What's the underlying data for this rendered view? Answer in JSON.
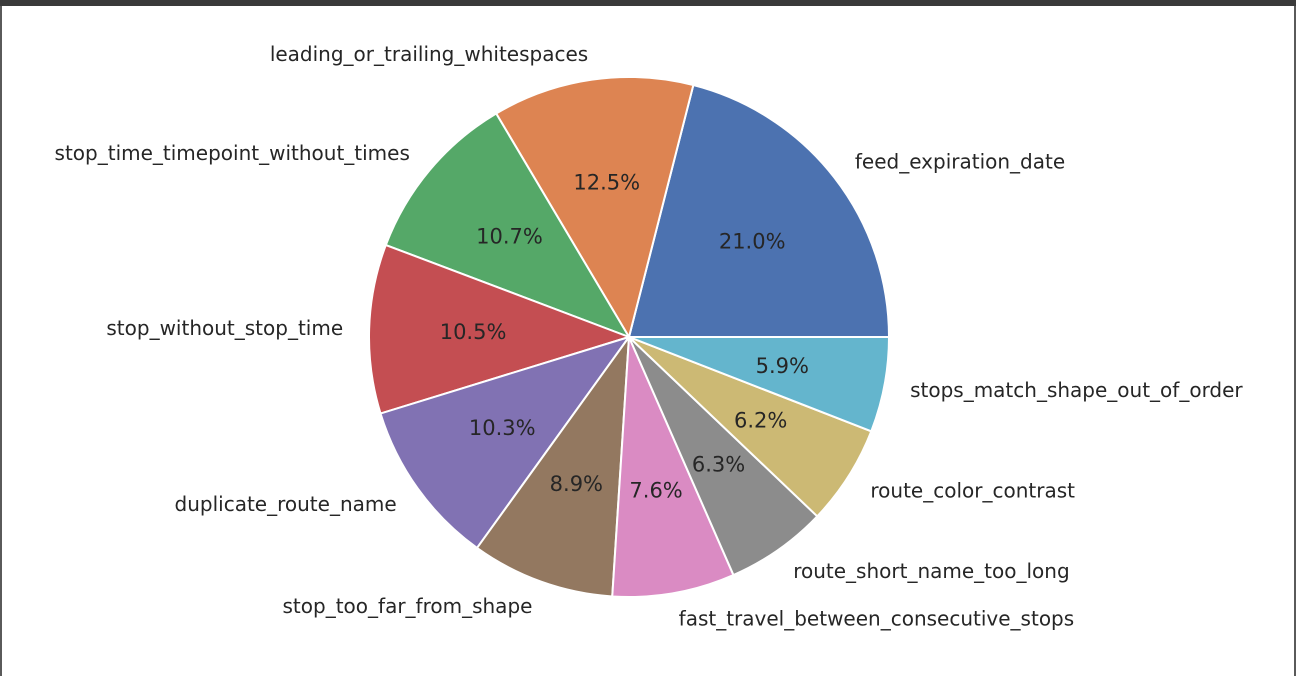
{
  "chart_data": {
    "type": "pie",
    "title": "",
    "start_angle_deg": 0,
    "direction": "counterclockwise",
    "slices": [
      {
        "label": "feed_expiration_date",
        "value": 21.0,
        "pct_text": "21.0%",
        "color": "#4c72b0"
      },
      {
        "label": "leading_or_trailing_whitespaces",
        "value": 12.5,
        "pct_text": "12.5%",
        "color": "#dd8452"
      },
      {
        "label": "stop_time_timepoint_without_times",
        "value": 10.7,
        "pct_text": "10.7%",
        "color": "#55a868"
      },
      {
        "label": "stop_without_stop_time",
        "value": 10.5,
        "pct_text": "10.5%",
        "color": "#c44e52"
      },
      {
        "label": "duplicate_route_name",
        "value": 10.3,
        "pct_text": "10.3%",
        "color": "#8172b3"
      },
      {
        "label": "stop_too_far_from_shape",
        "value": 8.9,
        "pct_text": "8.9%",
        "color": "#937860"
      },
      {
        "label": "fast_travel_between_consecutive_stops",
        "value": 7.6,
        "pct_text": "7.6%",
        "color": "#da8bc3"
      },
      {
        "label": "route_short_name_too_long",
        "value": 6.3,
        "pct_text": "6.3%",
        "color": "#8c8c8c"
      },
      {
        "label": "route_color_contrast",
        "value": 6.2,
        "pct_text": "6.2%",
        "color": "#ccb974"
      },
      {
        "label": "stops_match_shape_out_of_order",
        "value": 5.9,
        "pct_text": "5.9%",
        "color": "#64b5cd"
      }
    ]
  }
}
